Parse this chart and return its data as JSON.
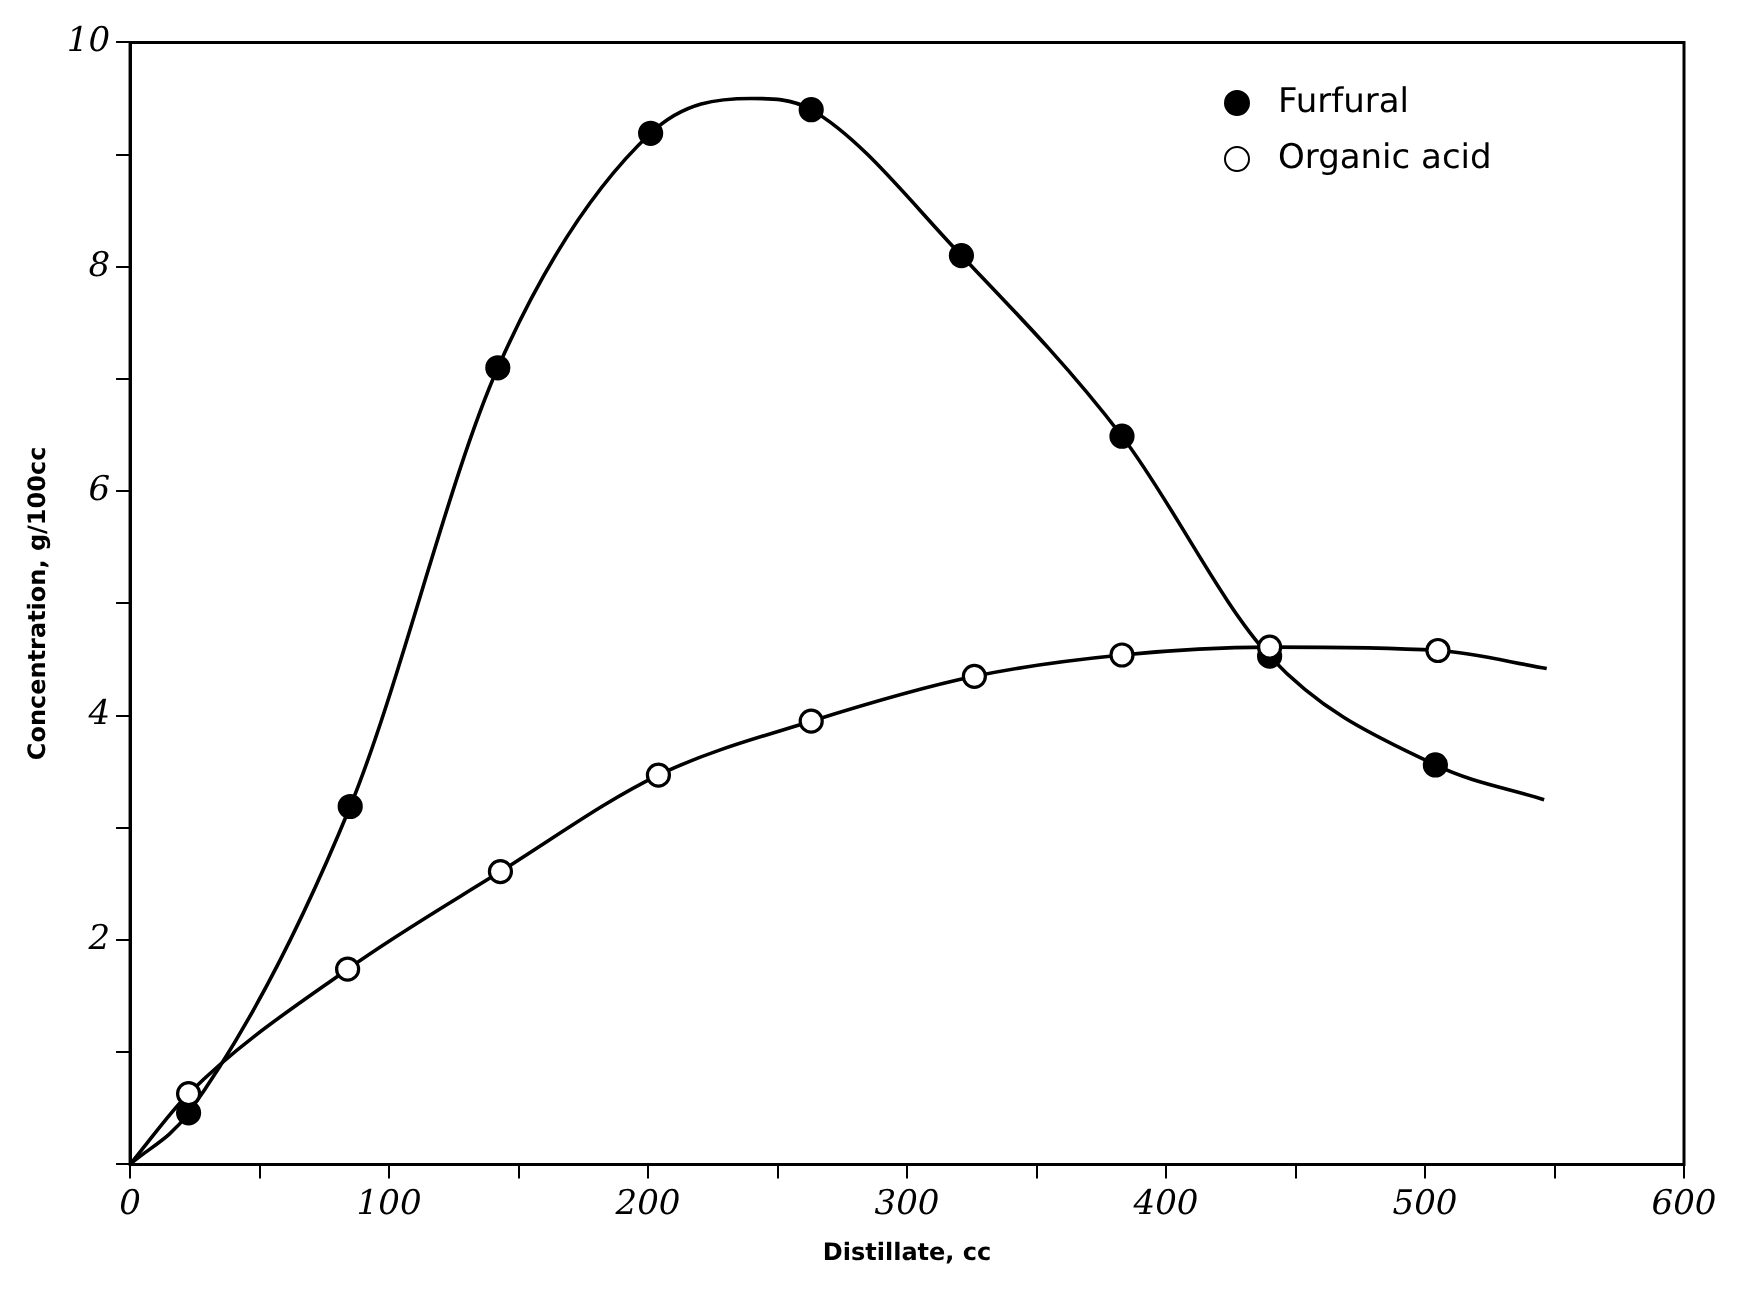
{
  "chart_data": {
    "type": "scatter",
    "xlabel": "Distillate, cc",
    "ylabel": "Concentration, g/100cc",
    "xlim": [
      0,
      600
    ],
    "ylim": [
      0,
      10
    ],
    "xticks": [
      0,
      {
        "value": 50,
        "label": null
      },
      100,
      {
        "value": 150,
        "label": null
      },
      200,
      {
        "value": 250,
        "label": null
      },
      300,
      {
        "value": 350,
        "label": null
      },
      400,
      {
        "value": 450,
        "label": null
      },
      500,
      {
        "value": 550,
        "label": null
      },
      600
    ],
    "yticks": [
      {
        "value": 0,
        "label": null
      },
      {
        "value": 1,
        "label": null
      },
      2,
      {
        "value": 3,
        "label": null
      },
      4,
      {
        "value": 5,
        "label": null
      },
      6,
      {
        "value": 7,
        "label": null
      },
      8,
      {
        "value": 9,
        "label": null
      },
      10
    ],
    "grid": false,
    "legend": "top right",
    "marker": "circle",
    "series": [
      {
        "name": "Furfural",
        "color": "#000000",
        "x": [
          22.6,
          85,
          142,
          201,
          263,
          321,
          383,
          440,
          504
        ],
        "values": [
          0.46,
          3.19,
          7.1,
          9.19,
          9.4,
          8.1,
          6.49,
          4.53,
          3.56
        ]
      },
      {
        "name": "Organic acid",
        "color": "#000000",
        "x": [
          22.6,
          84,
          143,
          204,
          263,
          326,
          383,
          440,
          505
        ],
        "values": [
          0.63,
          1.74,
          2.61,
          3.47,
          3.95,
          4.35,
          4.54,
          4.61,
          4.58
        ]
      },
      {
        "type": "line",
        "marker": "none",
        "color": "#000000",
        "x": [
          0,
          22.6,
          85,
          142,
          201,
          240,
          263,
          321,
          383,
          440,
          504,
          546
        ],
        "values": [
          0,
          0.46,
          3.19,
          7.1,
          9.19,
          9.5,
          9.4,
          8.1,
          6.49,
          4.53,
          3.56,
          3.25
        ]
      },
      {
        "type": "line",
        "marker": "none",
        "color": "#000000",
        "x": [
          0,
          22.6,
          84,
          143,
          204,
          263,
          326,
          383,
          440,
          505,
          547
        ],
        "values": [
          0,
          0.63,
          1.74,
          2.61,
          3.47,
          3.95,
          4.35,
          4.54,
          4.61,
          4.58,
          4.42
        ]
      }
    ]
  }
}
